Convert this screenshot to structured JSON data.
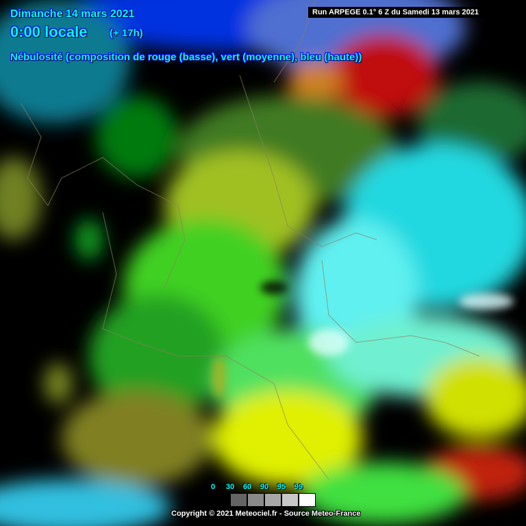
{
  "header": {
    "date": "Dimanche 14 mars 2021",
    "time": "0:00 locale",
    "lead": "(+ 17h)",
    "title": "Nébulosité (composition de rouge (basse), vert (moyenne), bleu (haute))",
    "run": "Run ARPEGE 0.1° 6 Z du Samedi 13 mars 2021"
  },
  "legend": {
    "labels": [
      "0",
      "30",
      "60",
      "90",
      "95",
      "99"
    ],
    "colors": [
      "#000000",
      "#646464",
      "#8a8a8a",
      "#a8a8a8",
      "#c8c8c8",
      "#ffffff"
    ]
  },
  "footer": {
    "copyright": "Copyright © 2021 Meteociel.fr - Source Meteo-France"
  },
  "colors": {
    "text": "#00ffff",
    "low_cloud": "#c00000",
    "mid_cloud": "#00c000",
    "high_cloud": "#0000ff"
  }
}
